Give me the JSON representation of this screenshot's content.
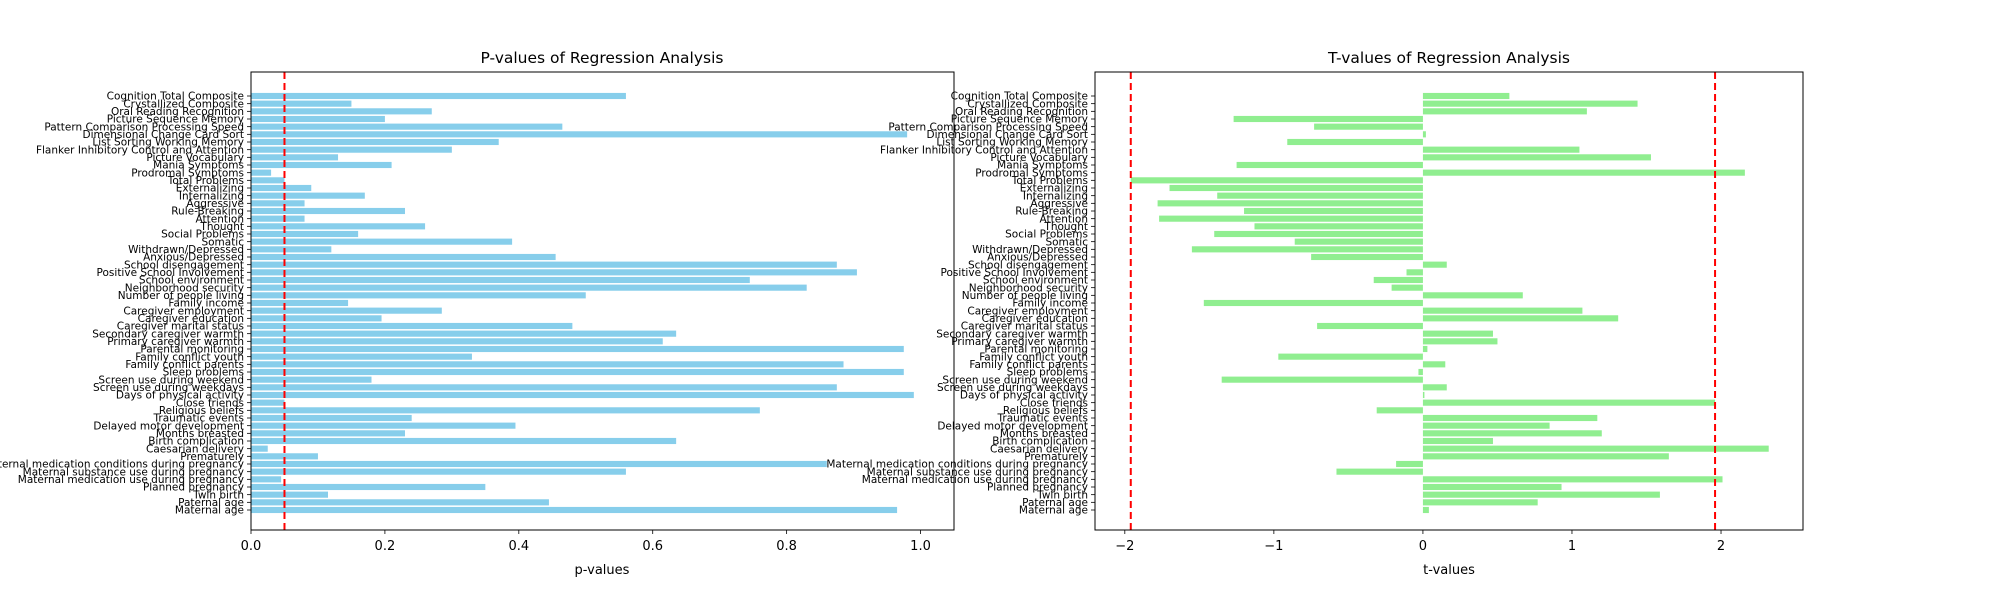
{
  "chart_data": [
    {
      "type": "bar",
      "orientation": "horizontal",
      "title": "P-values of Regression Analysis",
      "xlabel": "p-values",
      "ylabel": "",
      "xlim": [
        0.0,
        1.05
      ],
      "xticks": [
        "0.0",
        "0.2",
        "0.4",
        "0.6",
        "0.8",
        "1.0"
      ],
      "xtick_values": [
        0.0,
        0.2,
        0.4,
        0.6,
        0.8,
        1.0
      ],
      "bar_color": "#87ceeb",
      "reference_lines": [
        {
          "value": 0.05,
          "color": "#ff0000",
          "style": "dashed"
        }
      ],
      "grid": false,
      "categories": [
        "Cognition Total Composite",
        "Crystallized Composite",
        "Oral Reading Recognition",
        "Picture Sequence Memory",
        "Pattern Comparison Processing Speed",
        "Dimensional Change Card Sort",
        "List Sorting Working Memory",
        "Flanker Inhibitory Control and Attention",
        "Picture Vocabulary",
        "Mania Symptoms",
        "Prodromal Symptoms",
        "Total Problems",
        "Externalizing",
        "Internalizing",
        "Aggressive",
        "Rule-Breaking",
        "Attention",
        "Thought",
        "Social Problems",
        "Somatic",
        "Withdrawn/Depressed",
        "Anxious/Depressed",
        "School disengagement",
        "Positive School Involvement",
        "School environment",
        "Neighborhood security",
        "Number of people living",
        "Family income",
        "Caregiver employment",
        "Caregiver education",
        "Caregiver marital status",
        "Secondary caregiver warmth",
        "Primary caregiver warmth",
        "Parental monitoring",
        "Family conflict youth",
        "Family conflict parents",
        "Sleep problems",
        "Screen use during weekend",
        "Screen use during weekdays",
        "Days of physical activity",
        "Close friends",
        "Religious beliefs",
        "Traumatic events",
        "Delayed motor development",
        "Months breasted",
        "Birth complication",
        "Caesarian delivery",
        "Prematurely",
        "Maternal medication conditions during pregnancy",
        "Maternal substance use during pregnancy",
        "Maternal medication use during pregnancy",
        "Planned pregnancy",
        "Twin birth",
        "Paternal age",
        "Maternal age"
      ],
      "values": [
        0.56,
        0.15,
        0.27,
        0.2,
        0.465,
        0.98,
        0.37,
        0.3,
        0.13,
        0.21,
        0.03,
        0.05,
        0.09,
        0.17,
        0.08,
        0.23,
        0.08,
        0.26,
        0.16,
        0.39,
        0.12,
        0.455,
        0.875,
        0.905,
        0.745,
        0.83,
        0.5,
        0.145,
        0.285,
        0.195,
        0.48,
        0.635,
        0.615,
        0.975,
        0.33,
        0.885,
        0.975,
        0.18,
        0.875,
        0.99,
        0.05,
        0.76,
        0.24,
        0.395,
        0.23,
        0.635,
        0.025,
        0.1,
        0.86,
        0.56,
        0.045,
        0.35,
        0.115,
        0.445,
        0.965
      ]
    },
    {
      "type": "bar",
      "orientation": "horizontal",
      "title": "T-values of Regression Analysis",
      "xlabel": "t-values",
      "ylabel": "",
      "xlim": [
        -2.2,
        2.55
      ],
      "xticks": [
        "−2",
        "−1",
        "0",
        "1",
        "2"
      ],
      "xtick_values": [
        -2,
        -1,
        0,
        1,
        2
      ],
      "bar_color": "#90ee90",
      "reference_lines": [
        {
          "value": -1.96,
          "color": "#ff0000",
          "style": "dashed"
        },
        {
          "value": 1.96,
          "color": "#ff0000",
          "style": "dashed"
        }
      ],
      "grid": false,
      "categories": [
        "Cognition Total Composite",
        "Crystallized Composite",
        "Oral Reading Recognition",
        "Picture Sequence Memory",
        "Pattern Comparison Processing Speed",
        "Dimensional Change Card Sort",
        "List Sorting Working Memory",
        "Flanker Inhibitory Control and Attention",
        "Picture Vocabulary",
        "Mania Symptoms",
        "Prodromal Symptoms",
        "Total Problems",
        "Externalizing",
        "Internalizing",
        "Aggressive",
        "Rule-Breaking",
        "Attention",
        "Thought",
        "Social Problems",
        "Somatic",
        "Withdrawn/Depressed",
        "Anxious/Depressed",
        "School disengagement",
        "Positive School Involvement",
        "School environment",
        "Neighborhood security",
        "Number of people living",
        "Family income",
        "Caregiver employment",
        "Caregiver education",
        "Caregiver marital status",
        "Secondary caregiver warmth",
        "Primary caregiver warmth",
        "Parental monitoring",
        "Family conflict youth",
        "Family conflict parents",
        "Sleep problems",
        "Screen use during weekend",
        "Screen use during weekdays",
        "Days of physical activity",
        "Close friends",
        "Religious beliefs",
        "Traumatic events",
        "Delayed motor development",
        "Months breasted",
        "Birth complication",
        "Caesarian delivery",
        "Prematurely",
        "Maternal medication conditions during pregnancy",
        "Maternal substance use during pregnancy",
        "Maternal medication use during pregnancy",
        "Planned pregnancy",
        "Twin birth",
        "Paternal age",
        "Maternal age"
      ],
      "values": [
        0.58,
        1.44,
        1.1,
        -1.27,
        -0.73,
        0.02,
        -0.91,
        1.05,
        1.53,
        -1.25,
        2.16,
        -1.96,
        -1.7,
        -1.38,
        -1.78,
        -1.2,
        -1.77,
        -1.13,
        -1.4,
        -0.86,
        -1.55,
        -0.75,
        0.16,
        -0.11,
        -0.33,
        -0.21,
        0.67,
        -1.47,
        1.07,
        1.31,
        -0.71,
        0.47,
        0.5,
        0.03,
        -0.97,
        0.15,
        -0.03,
        -1.35,
        0.16,
        0.01,
        1.96,
        -0.31,
        1.17,
        0.85,
        1.2,
        0.47,
        2.32,
        1.65,
        -0.18,
        -0.58,
        2.01,
        0.93,
        1.59,
        0.77,
        0.04
      ]
    }
  ]
}
